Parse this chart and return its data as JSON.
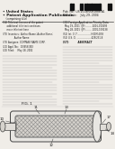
{
  "bg_color": "#f0ede8",
  "text_color": "#1a1a1a",
  "light_gray": "#aaaaaa",
  "dark_gray": "#444444",
  "mid_gray": "#777777",
  "line_color": "#555555",
  "barcode_color": "#111111",
  "diagram_bg": "#e8e5e0"
}
